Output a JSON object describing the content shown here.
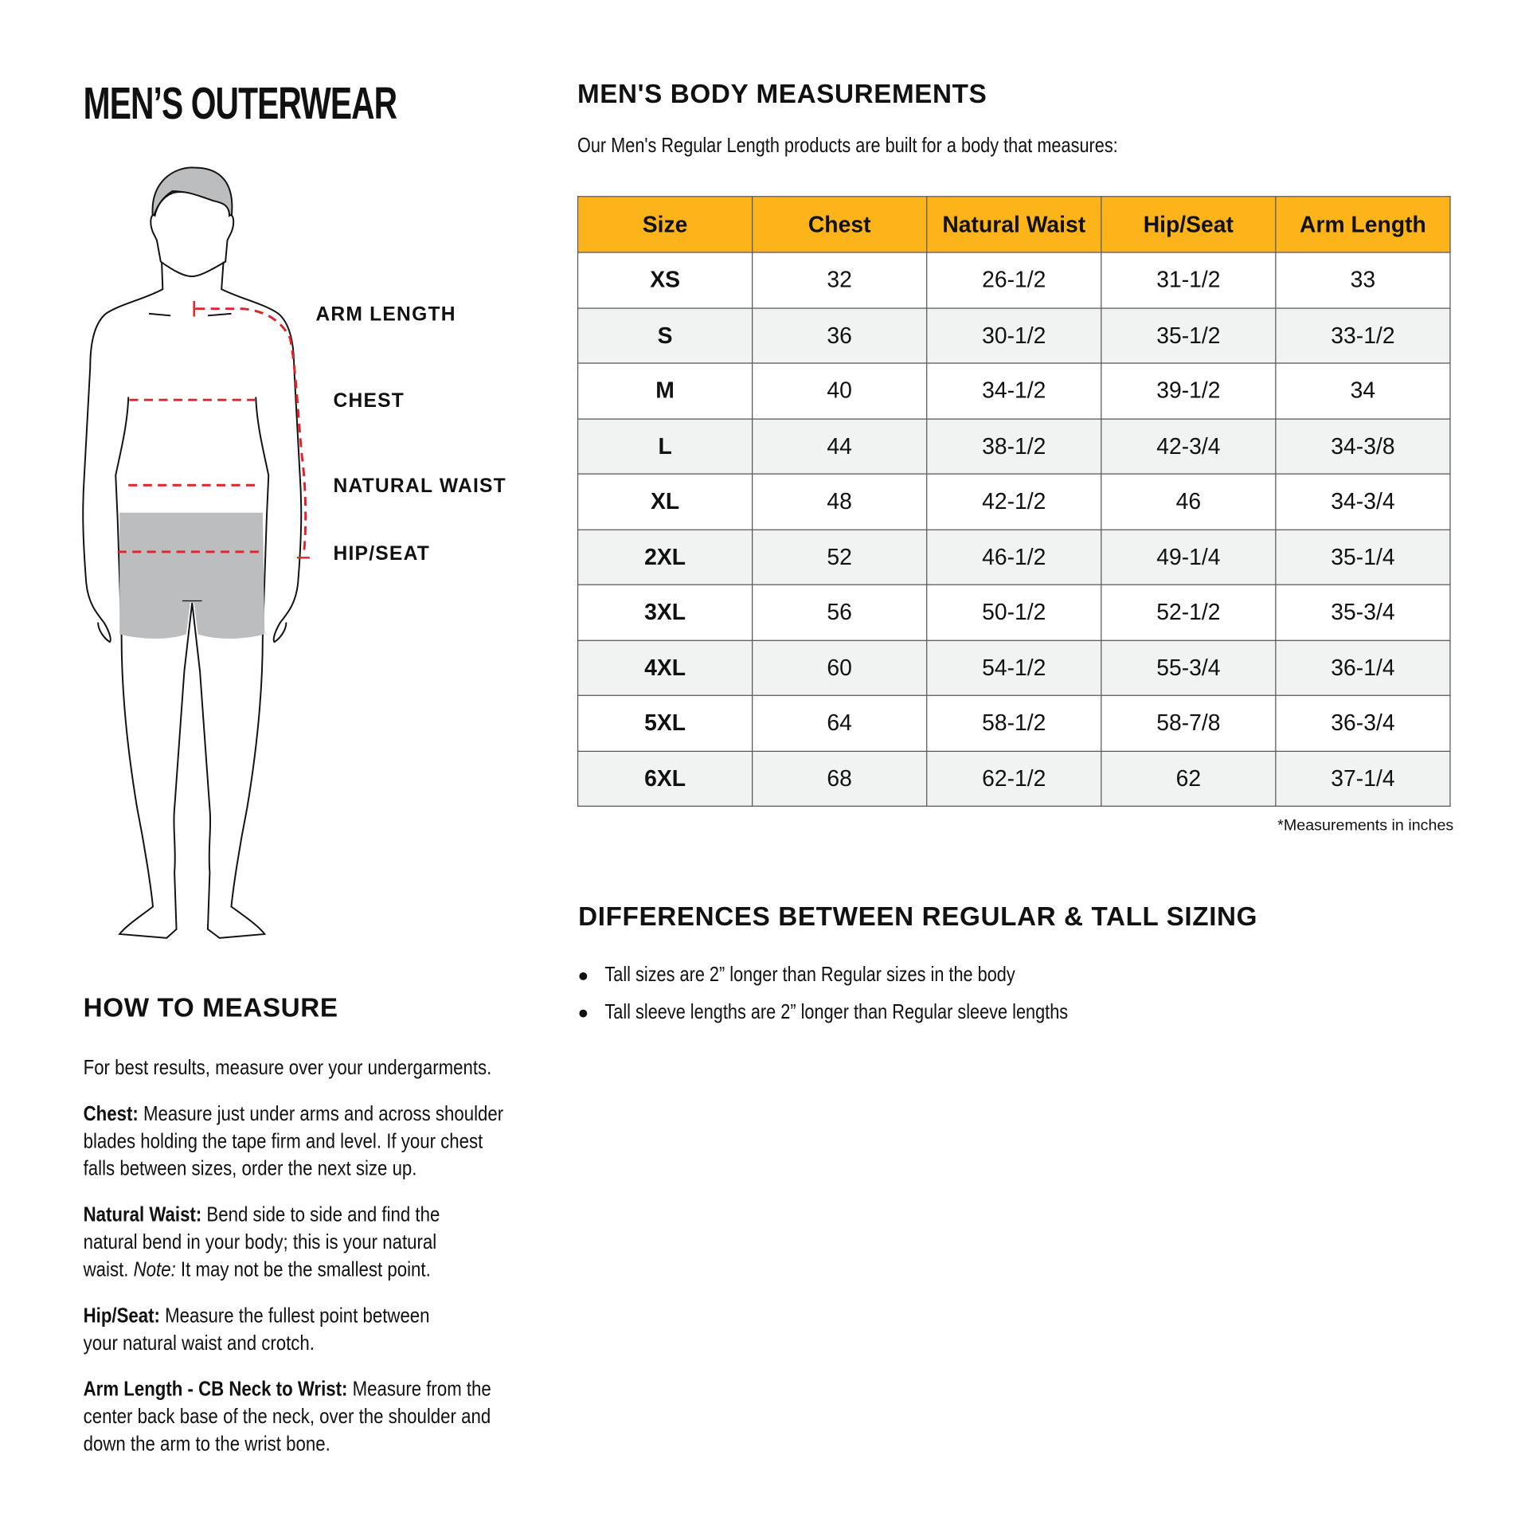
{
  "title": "MEN’S OUTERWEAR",
  "figure": {
    "labels": [
      "ARM LENGTH",
      "CHEST",
      "NATURAL WAIST",
      "HIP/SEAT"
    ],
    "measure_color": "#E0242B",
    "shorts_color": "#BCBDBF"
  },
  "how_to_measure": {
    "heading": "HOW TO MEASURE",
    "intro": "For best results, measure over your undergarments.",
    "items": [
      {
        "term": "Chest:",
        "lines": [
          " Measure just under arms and across shoulder",
          "blades holding the tape firm and level. If your chest",
          "falls between sizes, order the next size up."
        ]
      },
      {
        "term": "Natural Waist:",
        "lines": [
          " Bend side to side and find the",
          "natural bend in your body; this is your natural",
          "waist. "
        ],
        "note": "Note:",
        "note_rest": " It may not be the smallest point."
      },
      {
        "term": "Hip/Seat:",
        "lines": [
          " Measure the fullest point between",
          "your natural waist and crotch."
        ]
      },
      {
        "term": "Arm Length - CB Neck to Wrist:",
        "lines": [
          " Measure from the",
          "center back base of the neck, over the shoulder and",
          "down the arm to the wrist bone."
        ]
      }
    ]
  },
  "measurements": {
    "heading": "MEN'S BODY MEASUREMENTS",
    "subtitle": "Our Men's Regular Length products are built for a body that measures:",
    "header_color": "#FDB41A",
    "columns": [
      "Size",
      "Chest",
      "Natural Waist",
      "Hip/Seat",
      "Arm Length"
    ],
    "rows": [
      [
        "XS",
        "32",
        "26-1/2",
        "31-1/2",
        "33"
      ],
      [
        "S",
        "36",
        "30-1/2",
        "35-1/2",
        "33-1/2"
      ],
      [
        "M",
        "40",
        "34-1/2",
        "39-1/2",
        "34"
      ],
      [
        "L",
        "44",
        "38-1/2",
        "42-3/4",
        "34-3/8"
      ],
      [
        "XL",
        "48",
        "42-1/2",
        "46",
        "34-3/4"
      ],
      [
        "2XL",
        "52",
        "46-1/2",
        "49-1/4",
        "35-1/4"
      ],
      [
        "3XL",
        "56",
        "50-1/2",
        "52-1/2",
        "35-3/4"
      ],
      [
        "4XL",
        "60",
        "54-1/2",
        "55-3/4",
        "36-1/4"
      ],
      [
        "5XL",
        "64",
        "58-1/2",
        "58-7/8",
        "36-3/4"
      ],
      [
        "6XL",
        "68",
        "62-1/2",
        "62",
        "37-1/4"
      ]
    ],
    "footnote": "*Measurements in inches"
  },
  "differences": {
    "heading": "DIFFERENCES BETWEEN REGULAR & TALL SIZING",
    "bullets": [
      "Tall sizes are 2” longer than Regular sizes in the body",
      "Tall sleeve lengths are 2” longer than Regular sleeve lengths"
    ]
  }
}
